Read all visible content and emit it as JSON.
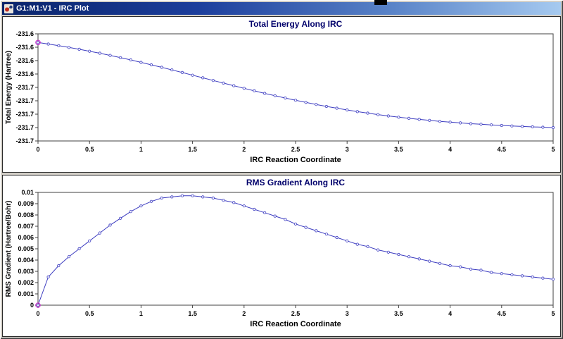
{
  "window": {
    "title": "G1:M1:V1 - IRC Plot",
    "background": "#d4d0c8",
    "titlebar_gradient": [
      "#0a246a",
      "#a6caf0"
    ],
    "icons": {
      "app_icon": "molecule-app-icon"
    }
  },
  "chart_data": [
    {
      "type": "line",
      "title": "Total Energy Along IRC",
      "xlabel": "IRC Reaction Coordinate",
      "ylabel": "Total Energy (Hartree)",
      "xlim": [
        0,
        5
      ],
      "ylim": [
        -231.74,
        -231.58
      ],
      "grid": false,
      "legend": "none",
      "marker": "open-circle",
      "highlight_index": 0,
      "style": {
        "line": "#3c3cc0",
        "marker_fill": "#f8f8ff",
        "marker_stroke": "#3c3cc0",
        "highlight": "#cc33cc",
        "title_color": "#00006b",
        "frame": "#404040"
      },
      "xticks": [
        {
          "v": 0,
          "label": "0"
        },
        {
          "v": 0.5,
          "label": "0.5"
        },
        {
          "v": 1,
          "label": "1"
        },
        {
          "v": 1.5,
          "label": "1.5"
        },
        {
          "v": 2,
          "label": "2"
        },
        {
          "v": 2.5,
          "label": "2.5"
        },
        {
          "v": 3,
          "label": "3"
        },
        {
          "v": 3.5,
          "label": "3.5"
        },
        {
          "v": 4,
          "label": "4"
        },
        {
          "v": 4.5,
          "label": "4.5"
        },
        {
          "v": 5,
          "label": "5"
        }
      ],
      "yticks": [
        {
          "v": -231.58,
          "label": "-231.6"
        },
        {
          "v": -231.6,
          "label": "-231.6"
        },
        {
          "v": -231.62,
          "label": "-231.6"
        },
        {
          "v": -231.64,
          "label": "-231.6"
        },
        {
          "v": -231.66,
          "label": "-231.7"
        },
        {
          "v": -231.68,
          "label": "-231.7"
        },
        {
          "v": -231.7,
          "label": "-231.7"
        },
        {
          "v": -231.72,
          "label": "-231.7"
        },
        {
          "v": -231.74,
          "label": "-231.7"
        }
      ],
      "x": [
        0,
        0.1,
        0.2,
        0.3,
        0.4,
        0.5,
        0.6,
        0.7,
        0.8,
        0.9,
        1,
        1.1,
        1.2,
        1.3,
        1.4,
        1.5,
        1.6,
        1.7,
        1.8,
        1.9,
        2,
        2.1,
        2.2,
        2.3,
        2.4,
        2.5,
        2.6,
        2.7,
        2.8,
        2.9,
        3,
        3.1,
        3.2,
        3.3,
        3.4,
        3.5,
        3.6,
        3.7,
        3.8,
        3.9,
        4,
        4.1,
        4.2,
        4.3,
        4.4,
        4.5,
        4.6,
        4.7,
        4.8,
        4.9,
        5
      ],
      "y": [
        -231.593,
        -231.5953,
        -231.5977,
        -231.6003,
        -231.6031,
        -231.606,
        -231.609,
        -231.6122,
        -231.6156,
        -231.619,
        -231.6226,
        -231.6263,
        -231.63,
        -231.6339,
        -231.6378,
        -231.6418,
        -231.6457,
        -231.6497,
        -231.6536,
        -231.6575,
        -231.6614,
        -231.6652,
        -231.6689,
        -231.6724,
        -231.6759,
        -231.6792,
        -231.6824,
        -231.6855,
        -231.6884,
        -231.6911,
        -231.6937,
        -231.6962,
        -231.6984,
        -231.7006,
        -231.7026,
        -231.7045,
        -231.7062,
        -231.7078,
        -231.7093,
        -231.7107,
        -231.7119,
        -231.7131,
        -231.7142,
        -231.7151,
        -231.716,
        -231.7168,
        -231.7176,
        -231.7183,
        -231.719,
        -231.7195,
        -231.72
      ]
    },
    {
      "type": "line",
      "title": "RMS Gradient Along IRC",
      "xlabel": "IRC Reaction Coordinate",
      "ylabel": "RMS Gradient (Hartree/Bohr)",
      "xlim": [
        0,
        5
      ],
      "ylim": [
        0,
        0.01
      ],
      "grid": false,
      "legend": "none",
      "marker": "open-circle",
      "highlight_index": 0,
      "style": {
        "line": "#3c3cc0",
        "marker_fill": "#f8f8ff",
        "marker_stroke": "#3c3cc0",
        "highlight": "#cc33cc",
        "title_color": "#00006b",
        "frame": "#404040"
      },
      "xticks": [
        {
          "v": 0,
          "label": "0"
        },
        {
          "v": 0.5,
          "label": "0.5"
        },
        {
          "v": 1,
          "label": "1"
        },
        {
          "v": 1.5,
          "label": "1.5"
        },
        {
          "v": 2,
          "label": "2"
        },
        {
          "v": 2.5,
          "label": "2.5"
        },
        {
          "v": 3,
          "label": "3"
        },
        {
          "v": 3.5,
          "label": "3.5"
        },
        {
          "v": 4,
          "label": "4"
        },
        {
          "v": 4.5,
          "label": "4.5"
        },
        {
          "v": 5,
          "label": "5"
        }
      ],
      "yticks": [
        {
          "v": 0.01,
          "label": "0.01"
        },
        {
          "v": 0.009,
          "label": "0.009"
        },
        {
          "v": 0.008,
          "label": "0.008"
        },
        {
          "v": 0.007,
          "label": "0.007"
        },
        {
          "v": 0.006,
          "label": "0.006"
        },
        {
          "v": 0.005,
          "label": "0.005"
        },
        {
          "v": 0.004,
          "label": "0.004"
        },
        {
          "v": 0.003,
          "label": "0.003"
        },
        {
          "v": 0.002,
          "label": "0.002"
        },
        {
          "v": 0.001,
          "label": "0.001"
        },
        {
          "v": 0,
          "label": "0"
        }
      ],
      "x": [
        0,
        0.1,
        0.2,
        0.3,
        0.4,
        0.5,
        0.6,
        0.7,
        0.8,
        0.9,
        1,
        1.1,
        1.2,
        1.3,
        1.4,
        1.5,
        1.6,
        1.7,
        1.8,
        1.9,
        2,
        2.1,
        2.2,
        2.3,
        2.4,
        2.5,
        2.6,
        2.7,
        2.8,
        2.9,
        3,
        3.1,
        3.2,
        3.3,
        3.4,
        3.5,
        3.6,
        3.7,
        3.8,
        3.9,
        4,
        4.1,
        4.2,
        4.3,
        4.4,
        4.5,
        4.6,
        4.7,
        4.8,
        4.9,
        5
      ],
      "y": [
        0,
        0.0025,
        0.0035,
        0.0043,
        0.005,
        0.0057,
        0.0064,
        0.0071,
        0.0077,
        0.0083,
        0.0088,
        0.0092,
        0.0095,
        0.0096,
        0.0097,
        0.0097,
        0.0096,
        0.0095,
        0.0093,
        0.0091,
        0.0088,
        0.0085,
        0.0082,
        0.0079,
        0.0076,
        0.0072,
        0.0069,
        0.0066,
        0.0063,
        0.006,
        0.0057,
        0.0054,
        0.0052,
        0.0049,
        0.0047,
        0.0045,
        0.0043,
        0.0041,
        0.0039,
        0.0037,
        0.0035,
        0.0034,
        0.0032,
        0.0031,
        0.0029,
        0.0028,
        0.0027,
        0.0026,
        0.0025,
        0.0024,
        0.0023
      ]
    }
  ]
}
